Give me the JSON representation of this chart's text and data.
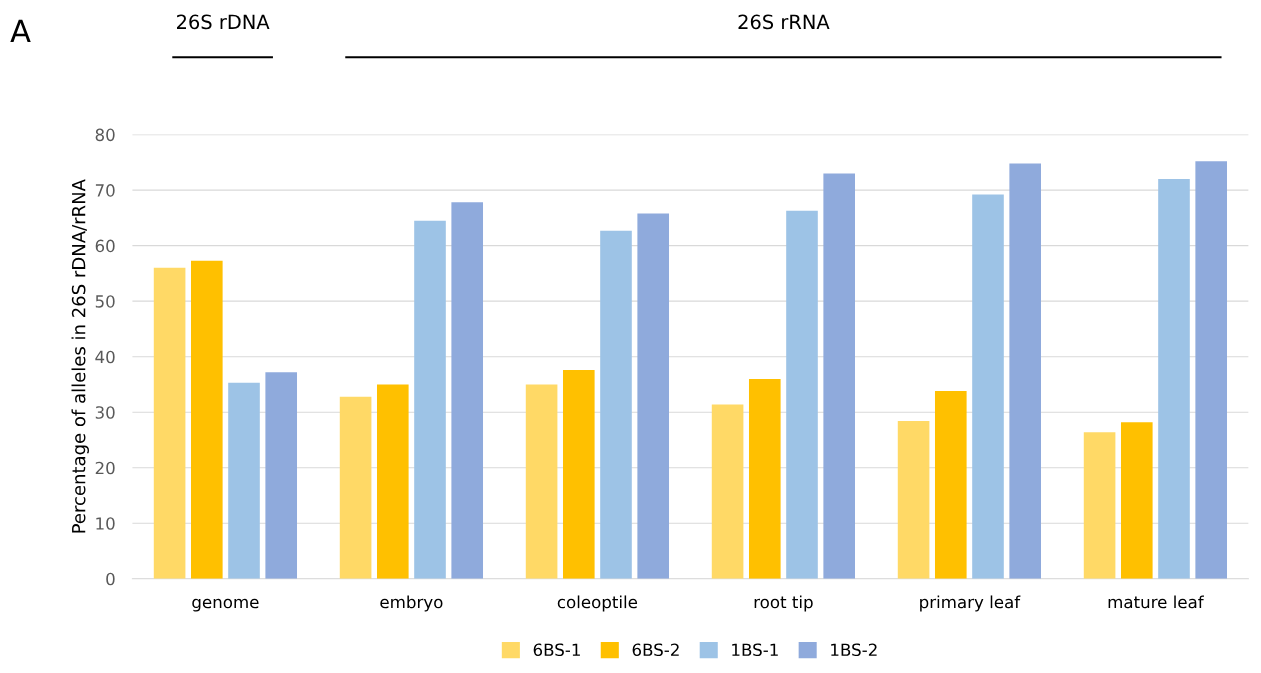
{
  "chart_data": {
    "type": "bar",
    "ylabel": "Percentage of alleles in 26S rDNA/rRNA",
    "categories": [
      "genome",
      "embryo",
      "coleoptile",
      "root tip",
      "primary leaf",
      "mature leaf"
    ],
    "series": [
      {
        "name": "6BS-1",
        "color": "#ffd966",
        "values": [
          56,
          32.8,
          35,
          31.4,
          28.4,
          26.4
        ]
      },
      {
        "name": "6BS-2",
        "color": "#ffc000",
        "values": [
          57.3,
          35,
          37.6,
          36,
          33.8,
          28.2
        ]
      },
      {
        "name": "1BS-1",
        "color": "#9dc3e6",
        "values": [
          35.3,
          64.5,
          62.7,
          66.3,
          69.2,
          72
        ]
      },
      {
        "name": "1BS-2",
        "color": "#8faadc",
        "values": [
          37.2,
          67.8,
          65.8,
          73,
          74.8,
          75.2
        ]
      }
    ],
    "ylim": [
      0,
      80
    ],
    "yticks": [
      0,
      10,
      20,
      30,
      40,
      50,
      60,
      70,
      80
    ],
    "grid": "y",
    "legend": "bottom",
    "annotations": [
      "A",
      "26S rDNA",
      "26S rRNA"
    ]
  }
}
